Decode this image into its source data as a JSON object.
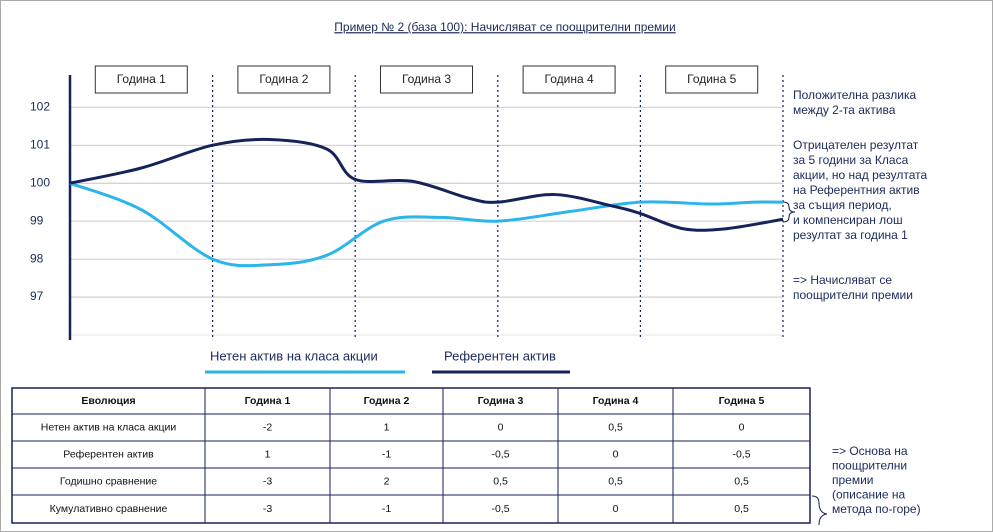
{
  "chart_data": {
    "type": "line",
    "title": "Пример № 2 (база 100): Начисляват се поощрителни премии",
    "categories": [
      "Година 1",
      "Година 2",
      "Година 3",
      "Година 4",
      "Година 5"
    ],
    "xlim": [
      0,
      5
    ],
    "ylim": [
      96,
      102.85
    ],
    "yticks": [
      97,
      98,
      99,
      100,
      101,
      102
    ],
    "grid": true,
    "series": [
      {
        "name": "Нетен актив на класа акции",
        "color": "#2bb5ea",
        "x": [
          0,
          0.5,
          1.0,
          1.4,
          1.8,
          2.2,
          2.6,
          3.0,
          3.5,
          4.0,
          4.5,
          4.8,
          5.0
        ],
        "values": [
          100,
          99.3,
          98.0,
          97.85,
          98.1,
          99.0,
          99.1,
          99.0,
          99.25,
          99.5,
          99.45,
          99.5,
          99.5
        ]
      },
      {
        "name": "Референтен актив",
        "color": "#16225a",
        "x": [
          0,
          0.5,
          1.0,
          1.4,
          1.8,
          2.0,
          2.4,
          2.8,
          3.0,
          3.4,
          3.8,
          4.0,
          4.3,
          4.6,
          5.0
        ],
        "values": [
          100,
          100.4,
          101.0,
          101.15,
          100.9,
          100.1,
          100.05,
          99.6,
          99.5,
          99.7,
          99.4,
          99.2,
          98.8,
          98.8,
          99.05
        ]
      }
    ]
  },
  "annotations": {
    "positive": [
      "Положителна разлика",
      "между 2-та актива"
    ],
    "negative": [
      "Отрицателен резултат",
      "за 5 години за Класа",
      "акции, но над резултата",
      "на Референтния актив",
      "за същия период,",
      "и компенсиран лош",
      "резултат за година 1"
    ],
    "conclusion": [
      "=> Начисляват се",
      "поощрителни премии"
    ],
    "table_note": [
      "=> Основа на",
      "поощрителни",
      "премии",
      "(описание на",
      "метода по-горе)"
    ]
  },
  "table": {
    "header": [
      "Еволюция",
      "Година 1",
      "Година 2",
      "Година 3",
      "Година 4",
      "Година 5"
    ],
    "rows": [
      [
        "Нетен актив на класа акции",
        "-2",
        "1",
        "0",
        "0,5",
        "0"
      ],
      [
        "Референтен актив",
        "1",
        "-1",
        "-0,5",
        "0",
        "-0,5"
      ],
      [
        "Годишно сравнение",
        "-3",
        "2",
        "0,5",
        "0,5",
        "0,5"
      ],
      [
        "Кумулативно сравнение",
        "-3",
        "-1",
        "-0,5",
        "0",
        "0,5"
      ]
    ]
  }
}
